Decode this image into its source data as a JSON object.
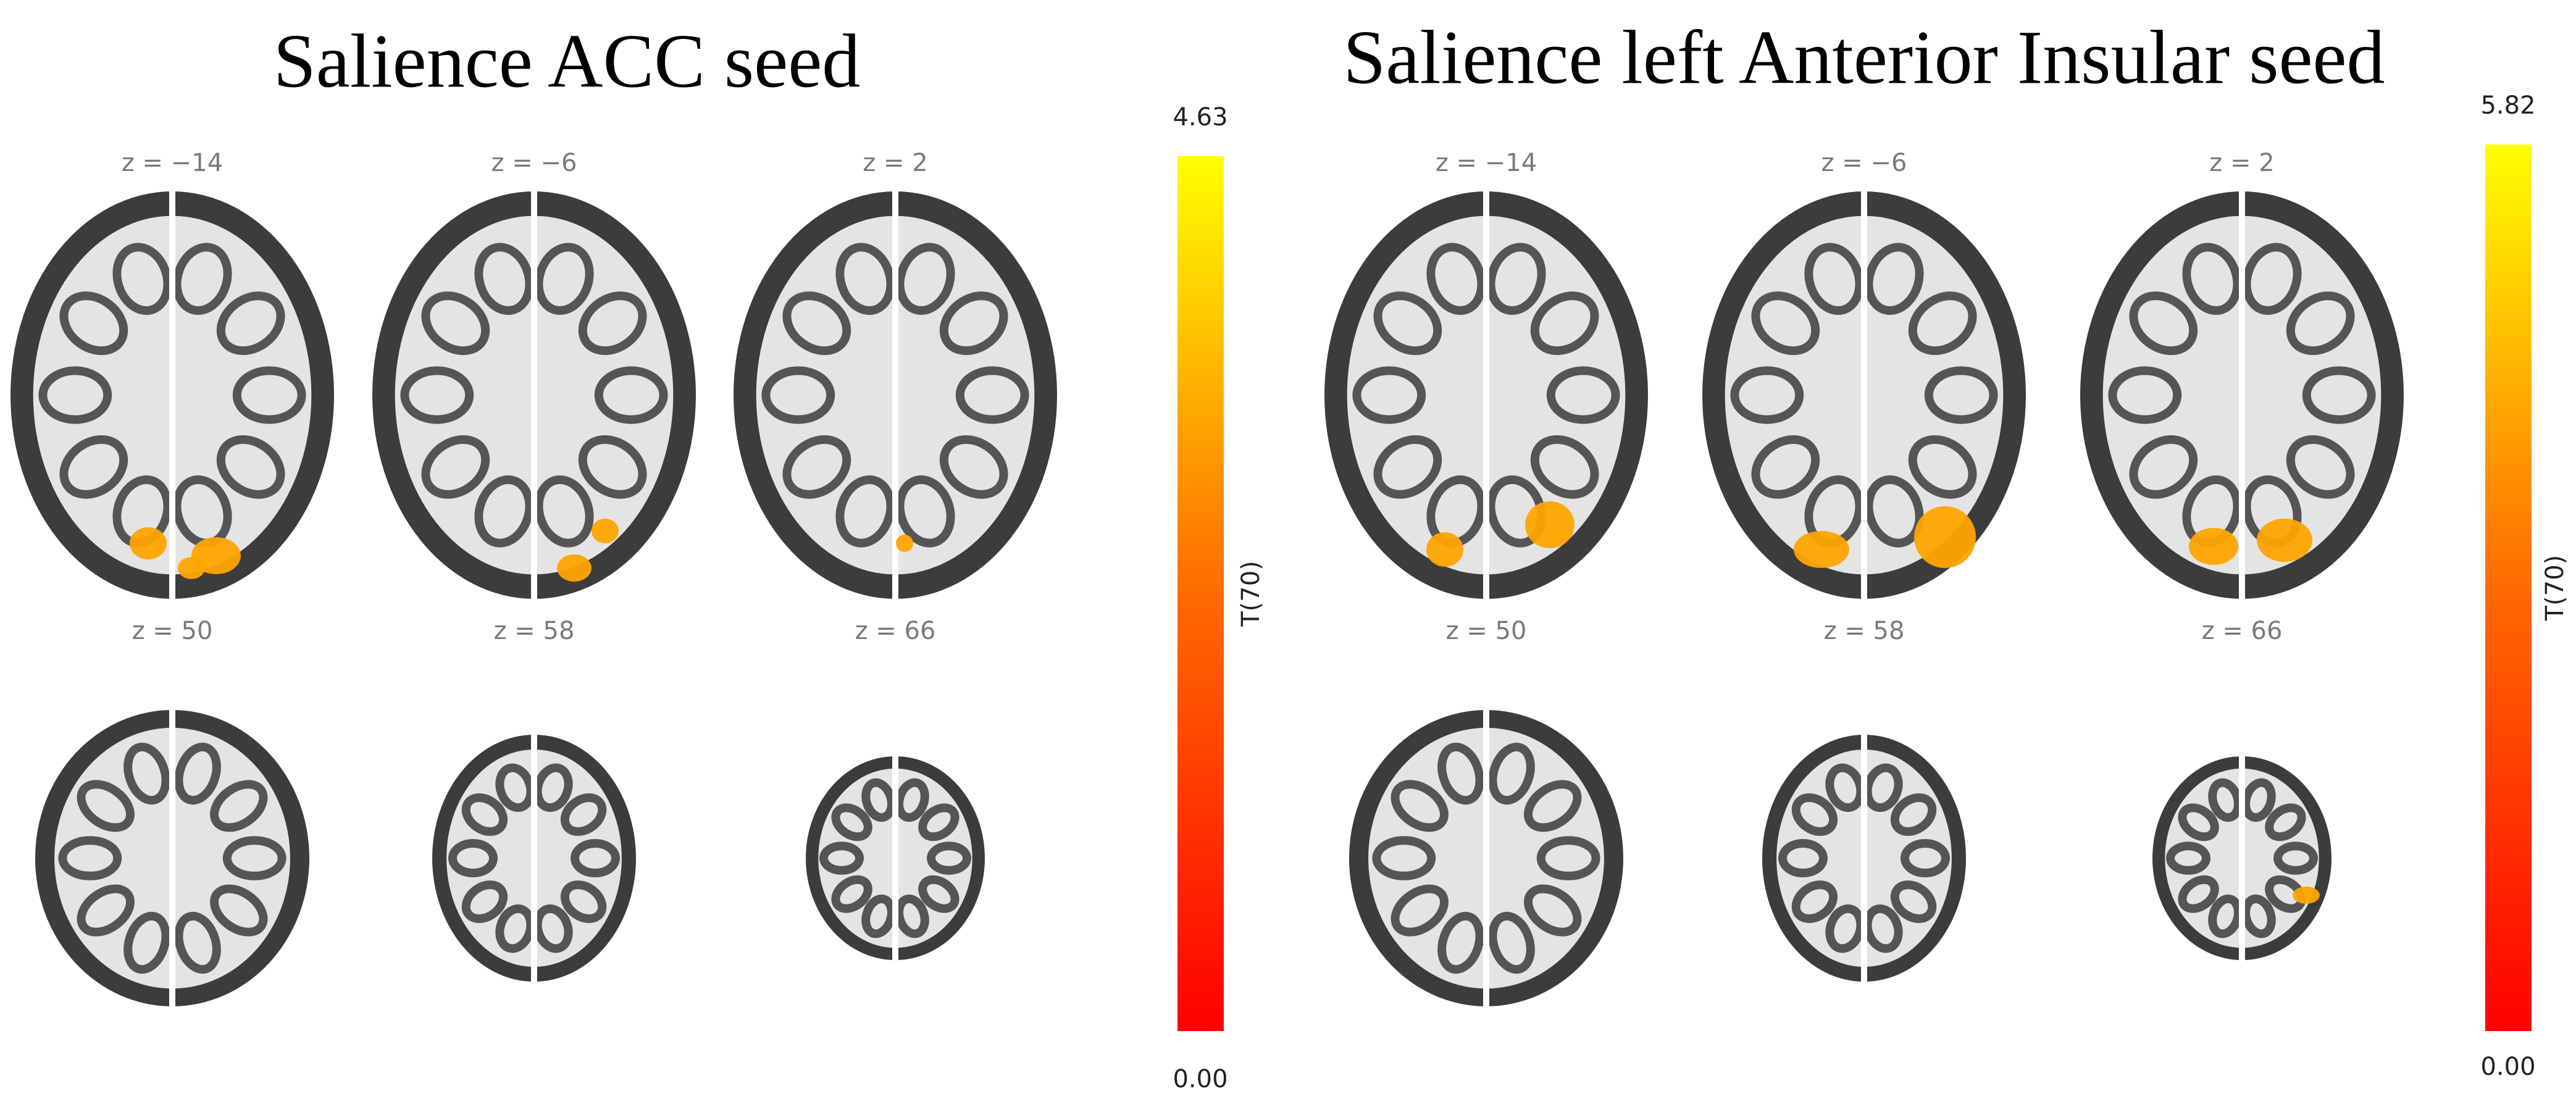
{
  "panels": [
    {
      "title": "Salience ACC seed",
      "slices": [
        "z = −14",
        "z = −6",
        "z = 2",
        "z = 50",
        "z = 58",
        "z = 66"
      ],
      "colorbar": {
        "max": "4.63",
        "min": "0.00",
        "label": "T(70)"
      }
    },
    {
      "title": "Salience left Anterior Insular seed",
      "slices": [
        "z = −14",
        "z = −6",
        "z = 2",
        "z = 50",
        "z = 58",
        "z = 66"
      ],
      "colorbar": {
        "max": "5.82",
        "min": "0.00",
        "label": "T(70)"
      }
    }
  ]
}
